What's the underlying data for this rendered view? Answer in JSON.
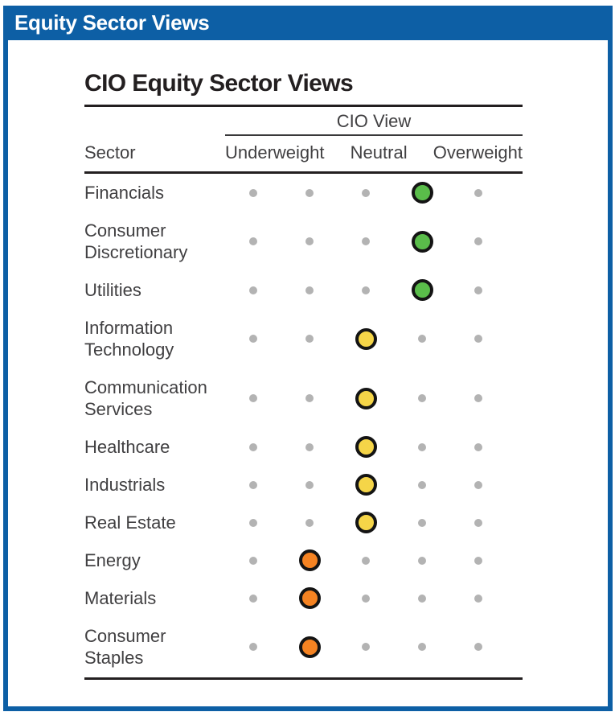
{
  "header_bar": {
    "title": "Equity Sector Views"
  },
  "panel": {
    "title": "CIO Equity Sector Views",
    "column_group_header": "CIO View",
    "sector_header": "Sector",
    "scale_labels": [
      "Underweight",
      "Neutral",
      "Overweight"
    ]
  },
  "colors": {
    "frame_blue": "#0d5fa5",
    "title_black": "#231f20",
    "label_gray": "#414042",
    "inactive_dot_gray": "#b3b3b3",
    "dot_ring_black": "#141414",
    "overweight_green": "#5abd4a",
    "neutral_yellow": "#f5d548",
    "underweight_orange": "#f58322"
  },
  "chart_data": {
    "type": "table",
    "title": "CIO Equity Sector Views",
    "scale": {
      "labels": [
        "Underweight",
        "Neutral",
        "Overweight"
      ],
      "num_positions": 5,
      "position_meaning": "dot column 1-5; 2=underweight, 3=neutral, 4=overweight"
    },
    "rows": [
      {
        "sector": "Financials",
        "view": "Overweight",
        "position": 4,
        "dot_color": "green"
      },
      {
        "sector": "Consumer Discretionary",
        "view": "Overweight",
        "position": 4,
        "dot_color": "green"
      },
      {
        "sector": "Utilities",
        "view": "Overweight",
        "position": 4,
        "dot_color": "green"
      },
      {
        "sector": "Information Technology",
        "view": "Neutral",
        "position": 3,
        "dot_color": "yellow"
      },
      {
        "sector": "Communication Services",
        "view": "Neutral",
        "position": 3,
        "dot_color": "yellow"
      },
      {
        "sector": "Healthcare",
        "view": "Neutral",
        "position": 3,
        "dot_color": "yellow"
      },
      {
        "sector": "Industrials",
        "view": "Neutral",
        "position": 3,
        "dot_color": "yellow"
      },
      {
        "sector": "Real Estate",
        "view": "Neutral",
        "position": 3,
        "dot_color": "yellow"
      },
      {
        "sector": "Energy",
        "view": "Underweight",
        "position": 2,
        "dot_color": "orange"
      },
      {
        "sector": "Materials",
        "view": "Underweight",
        "position": 2,
        "dot_color": "orange"
      },
      {
        "sector": "Consumer Staples",
        "view": "Underweight",
        "position": 2,
        "dot_color": "orange"
      }
    ]
  }
}
